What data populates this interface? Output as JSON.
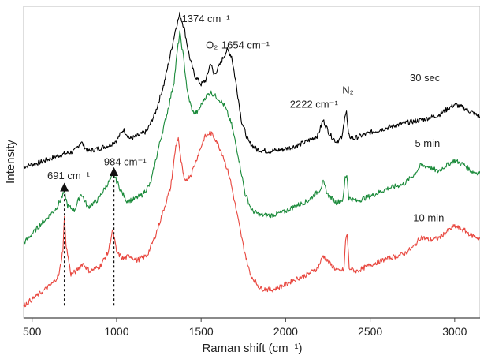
{
  "chart_data": {
    "type": "line",
    "xlabel": "Raman shift (cm⁻¹)",
    "ylabel": "Intensity",
    "xlim": [
      450,
      3150
    ],
    "ylim": [
      0,
      100
    ],
    "y_ticks_shown": false,
    "grid": false,
    "x_ticks": [
      {
        "value": 500,
        "label": "500"
      },
      {
        "value": 1000,
        "label": "1000"
      },
      {
        "value": 1500,
        "label": "1500"
      },
      {
        "value": 2000,
        "label": "2000"
      },
      {
        "value": 2500,
        "label": "2500"
      },
      {
        "value": 3000,
        "label": "3000"
      }
    ],
    "series": [
      {
        "name": "30 sec",
        "color": "#000000",
        "points": [
          [
            450,
            48.5
          ],
          [
            550,
            50.0
          ],
          [
            650,
            52.0
          ],
          [
            750,
            53.5
          ],
          [
            790,
            56.5
          ],
          [
            830,
            53.5
          ],
          [
            900,
            54.5
          ],
          [
            960,
            55.5
          ],
          [
            1000,
            57.0
          ],
          [
            1040,
            60.5
          ],
          [
            1080,
            57.5
          ],
          [
            1130,
            58.5
          ],
          [
            1180,
            60.0
          ],
          [
            1230,
            66.0
          ],
          [
            1280,
            75.0
          ],
          [
            1320,
            85.0
          ],
          [
            1350,
            93.0
          ],
          [
            1374,
            97.5
          ],
          [
            1400,
            93.0
          ],
          [
            1430,
            84.0
          ],
          [
            1460,
            78.0
          ],
          [
            1500,
            75.0
          ],
          [
            1530,
            76.5
          ],
          [
            1556,
            82.0
          ],
          [
            1575,
            78.0
          ],
          [
            1600,
            80.0
          ],
          [
            1630,
            83.5
          ],
          [
            1654,
            86.0
          ],
          [
            1680,
            84.0
          ],
          [
            1710,
            74.0
          ],
          [
            1740,
            63.0
          ],
          [
            1780,
            56.5
          ],
          [
            1830,
            54.0
          ],
          [
            1900,
            53.5
          ],
          [
            1980,
            54.0
          ],
          [
            2050,
            55.0
          ],
          [
            2120,
            56.5
          ],
          [
            2190,
            58.5
          ],
          [
            2222,
            63.5
          ],
          [
            2260,
            59.0
          ],
          [
            2300,
            56.5
          ],
          [
            2335,
            58.0
          ],
          [
            2350,
            65.0
          ],
          [
            2360,
            66.0
          ],
          [
            2372,
            58.5
          ],
          [
            2400,
            57.5
          ],
          [
            2500,
            59.5
          ],
          [
            2600,
            61.0
          ],
          [
            2700,
            62.5
          ],
          [
            2800,
            63.5
          ],
          [
            2900,
            65.0
          ],
          [
            3000,
            68.5
          ],
          [
            3050,
            67.5
          ],
          [
            3100,
            66.0
          ],
          [
            3150,
            64.5
          ]
        ]
      },
      {
        "name": "5 min",
        "color": "#1a8a3a",
        "points": [
          [
            450,
            24.0
          ],
          [
            550,
            30.0
          ],
          [
            640,
            35.0
          ],
          [
            670,
            38.0
          ],
          [
            691,
            40.5
          ],
          [
            710,
            36.0
          ],
          [
            750,
            34.5
          ],
          [
            790,
            40.0
          ],
          [
            830,
            35.5
          ],
          [
            890,
            38.0
          ],
          [
            940,
            42.5
          ],
          [
            984,
            46.0
          ],
          [
            1020,
            41.5
          ],
          [
            1060,
            37.5
          ],
          [
            1100,
            38.0
          ],
          [
            1150,
            39.5
          ],
          [
            1200,
            43.0
          ],
          [
            1250,
            55.0
          ],
          [
            1300,
            66.0
          ],
          [
            1340,
            76.0
          ],
          [
            1360,
            86.0
          ],
          [
            1374,
            91.5
          ],
          [
            1395,
            84.0
          ],
          [
            1420,
            72.0
          ],
          [
            1450,
            66.0
          ],
          [
            1480,
            66.0
          ],
          [
            1520,
            70.5
          ],
          [
            1555,
            72.5
          ],
          [
            1600,
            70.5
          ],
          [
            1640,
            68.0
          ],
          [
            1680,
            62.0
          ],
          [
            1720,
            52.0
          ],
          [
            1760,
            40.0
          ],
          [
            1800,
            34.5
          ],
          [
            1850,
            33.0
          ],
          [
            1920,
            33.0
          ],
          [
            1990,
            34.0
          ],
          [
            2060,
            36.0
          ],
          [
            2130,
            37.5
          ],
          [
            2200,
            41.0
          ],
          [
            2222,
            43.5
          ],
          [
            2250,
            39.5
          ],
          [
            2300,
            37.0
          ],
          [
            2340,
            38.0
          ],
          [
            2352,
            45.0
          ],
          [
            2362,
            46.0
          ],
          [
            2374,
            38.5
          ],
          [
            2420,
            37.5
          ],
          [
            2520,
            39.5
          ],
          [
            2600,
            41.5
          ],
          [
            2700,
            43.0
          ],
          [
            2760,
            46.0
          ],
          [
            2800,
            49.0
          ],
          [
            2850,
            48.5
          ],
          [
            2900,
            47.0
          ],
          [
            2950,
            49.0
          ],
          [
            3000,
            50.5
          ],
          [
            3060,
            49.0
          ],
          [
            3100,
            47.0
          ],
          [
            3150,
            46.5
          ]
        ]
      },
      {
        "name": "10 min",
        "color": "#e8473f",
        "points": [
          [
            450,
            4.0
          ],
          [
            550,
            8.0
          ],
          [
            620,
            11.0
          ],
          [
            660,
            14.0
          ],
          [
            682,
            22.0
          ],
          [
            691,
            32.0
          ],
          [
            702,
            23.0
          ],
          [
            730,
            14.0
          ],
          [
            760,
            15.0
          ],
          [
            800,
            17.5
          ],
          [
            840,
            15.0
          ],
          [
            900,
            16.5
          ],
          [
            950,
            21.0
          ],
          [
            975,
            28.0
          ],
          [
            984,
            26.5
          ],
          [
            1000,
            21.0
          ],
          [
            1040,
            19.0
          ],
          [
            1080,
            20.0
          ],
          [
            1120,
            18.5
          ],
          [
            1180,
            20.0
          ],
          [
            1230,
            26.5
          ],
          [
            1280,
            35.0
          ],
          [
            1320,
            42.0
          ],
          [
            1350,
            55.0
          ],
          [
            1365,
            58.0
          ],
          [
            1374,
            53.0
          ],
          [
            1400,
            44.0
          ],
          [
            1440,
            46.0
          ],
          [
            1480,
            52.0
          ],
          [
            1520,
            58.0
          ],
          [
            1555,
            59.5
          ],
          [
            1590,
            57.0
          ],
          [
            1630,
            52.0
          ],
          [
            1670,
            45.0
          ],
          [
            1710,
            34.0
          ],
          [
            1750,
            23.0
          ],
          [
            1790,
            14.0
          ],
          [
            1850,
            9.5
          ],
          [
            1920,
            9.0
          ],
          [
            1990,
            10.5
          ],
          [
            2060,
            12.5
          ],
          [
            2130,
            14.0
          ],
          [
            2190,
            16.0
          ],
          [
            2222,
            20.0
          ],
          [
            2260,
            17.5
          ],
          [
            2310,
            15.0
          ],
          [
            2345,
            15.5
          ],
          [
            2355,
            25.0
          ],
          [
            2364,
            27.0
          ],
          [
            2376,
            16.0
          ],
          [
            2420,
            15.0
          ],
          [
            2520,
            17.5
          ],
          [
            2600,
            19.0
          ],
          [
            2700,
            20.5
          ],
          [
            2760,
            23.0
          ],
          [
            2800,
            26.0
          ],
          [
            2850,
            25.0
          ],
          [
            2900,
            25.5
          ],
          [
            2950,
            27.5
          ],
          [
            3000,
            29.5
          ],
          [
            3060,
            28.0
          ],
          [
            3100,
            26.5
          ],
          [
            3150,
            25.5
          ]
        ]
      }
    ],
    "series_labels": [
      {
        "text": "30 sec",
        "x": 2735,
        "y": 76.0
      },
      {
        "text": "5 min",
        "x": 2765,
        "y": 55.0
      },
      {
        "text": "10 min",
        "x": 2755,
        "y": 31.0
      }
    ],
    "annotations": [
      {
        "text": "1374 cm⁻¹",
        "x": 1385,
        "y": 95.0
      },
      {
        "text": "O₂",
        "x": 1528,
        "y": 86.5
      },
      {
        "text": "1654 cm⁻¹",
        "x": 1620,
        "y": 86.5
      },
      {
        "text": "2222 cm⁻¹",
        "x": 2025,
        "y": 67.5
      },
      {
        "text": "N₂",
        "x": 2335,
        "y": 72.0
      },
      {
        "text": "691 cm⁻¹",
        "x": 590,
        "y": 44.5
      },
      {
        "text": "984 cm⁻¹",
        "x": 925,
        "y": 49.0
      }
    ],
    "markers": [
      {
        "x": 691,
        "y_from": 4.0,
        "y_to": 42.0,
        "style": "dashed-arrow"
      },
      {
        "x": 984,
        "y_from": 4.0,
        "y_to": 47.0,
        "style": "dashed-arrow"
      }
    ]
  }
}
